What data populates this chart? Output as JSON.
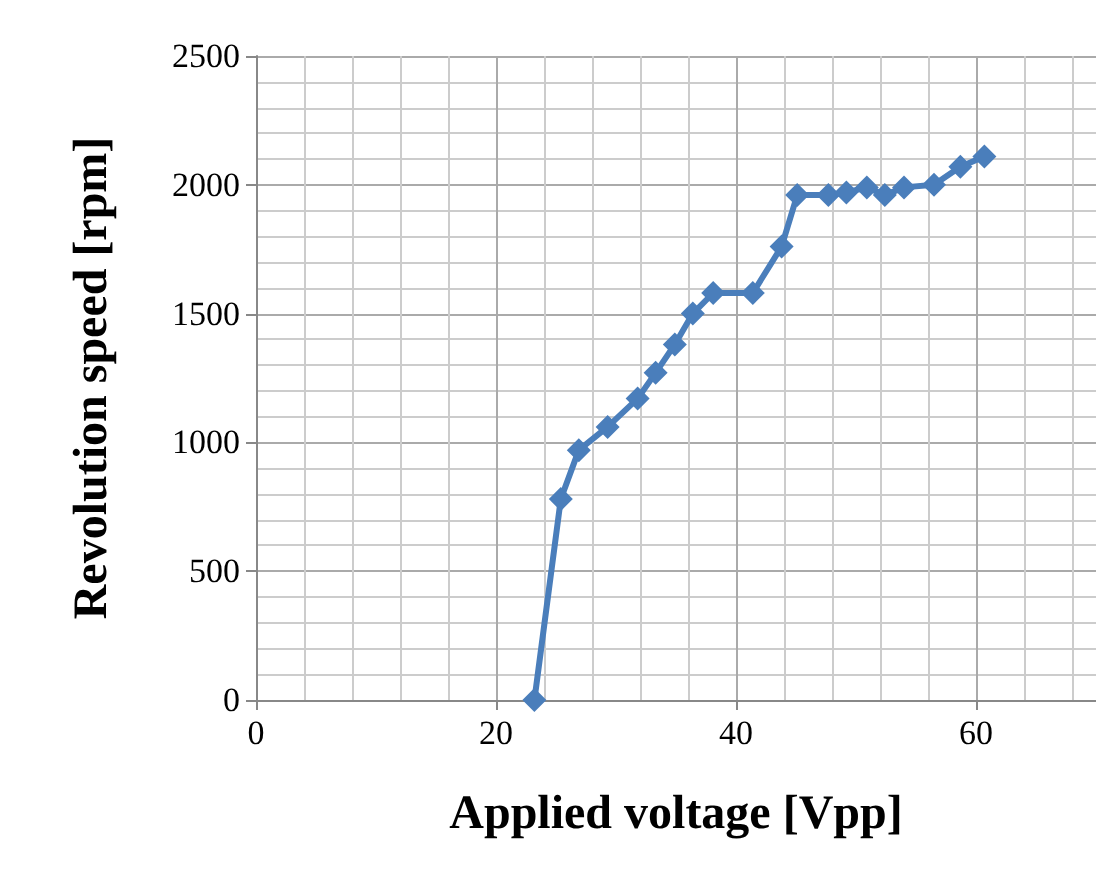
{
  "chart_data": {
    "type": "line",
    "xlabel": "Applied voltage [Vpp]",
    "ylabel": "Revolution speed [rpm]",
    "x": [
      23.2,
      25.4,
      26.9,
      29.3,
      31.8,
      33.3,
      34.9,
      36.4,
      38.1,
      41.4,
      43.8,
      45.1,
      47.7,
      49.2,
      50.9,
      52.4,
      54.0,
      56.5,
      58.7,
      60.7
    ],
    "series": [
      {
        "color": "#4a7ebb",
        "values": [
          0,
          780,
          970,
          1060,
          1170,
          1270,
          1380,
          1500,
          1580,
          1580,
          1760,
          1960,
          1960,
          1970,
          1990,
          1960,
          1990,
          2000,
          2070,
          2110
        ]
      }
    ],
    "xlim": [
      0,
      70
    ],
    "xticks": [
      0,
      20,
      40,
      60
    ],
    "ylim": [
      0,
      2500
    ],
    "yticks": [
      0,
      500,
      1000,
      1500,
      2000,
      2500
    ],
    "grid": true,
    "marker": "diamond",
    "line_style": "solid"
  }
}
